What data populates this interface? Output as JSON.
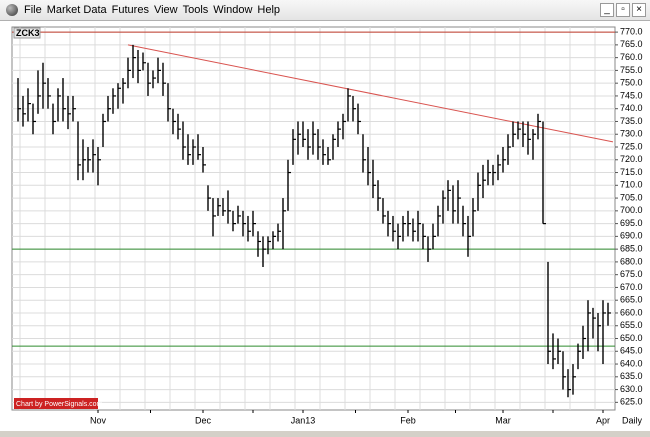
{
  "menu": [
    "File",
    "Market Data",
    "Futures",
    "View",
    "Tools",
    "Window",
    "Help"
  ],
  "chart_data": {
    "type": "ohlc",
    "title": "ZCK3",
    "watermark": "Chart by PowerSignals.com",
    "period": "Daily",
    "color": "#000000",
    "grid": true,
    "categories": [
      null,
      null,
      null,
      null,
      null,
      null,
      null,
      null,
      null,
      null,
      null,
      null,
      null,
      null,
      null,
      null,
      "Nov",
      null,
      null,
      null,
      null,
      null,
      null,
      null,
      null,
      null,
      null,
      null,
      null,
      null,
      null,
      null,
      null,
      null,
      null,
      null,
      null,
      "Dec",
      null,
      null,
      null,
      null,
      null,
      null,
      null,
      null,
      null,
      null,
      null,
      null,
      null,
      null,
      null,
      null,
      null,
      null,
      null,
      "Jan13",
      null,
      null,
      null,
      null,
      null,
      null,
      null,
      null,
      null,
      null,
      null,
      null,
      null,
      null,
      null,
      null,
      null,
      null,
      null,
      null,
      "Feb",
      null,
      null,
      null,
      null,
      null,
      null,
      null,
      null,
      null,
      null,
      null,
      null,
      null,
      null,
      null,
      null,
      null,
      null,
      "Mar",
      null,
      null,
      null,
      null,
      null,
      null,
      null,
      null,
      null,
      null,
      null,
      null,
      null,
      null,
      null,
      null,
      null,
      null,
      null,
      "Apr",
      null
    ],
    "high": [
      752,
      745,
      748,
      742,
      755,
      758,
      752,
      742,
      748,
      752,
      745,
      745,
      735,
      728,
      725,
      728,
      725,
      738,
      745,
      748,
      750,
      752,
      760,
      765,
      763,
      762,
      758,
      755,
      760,
      758,
      750,
      740,
      738,
      735,
      730,
      728,
      730,
      725,
      710,
      705,
      705,
      705,
      708,
      700,
      702,
      700,
      698,
      700,
      692,
      690,
      690,
      692,
      695,
      705,
      720,
      732,
      735,
      735,
      732,
      735,
      732,
      728,
      725,
      730,
      735,
      738,
      748,
      745,
      742,
      730,
      725,
      720,
      712,
      705,
      700,
      698,
      695,
      698,
      700,
      697,
      700,
      695,
      690,
      695,
      702,
      708,
      712,
      710,
      712,
      702,
      698,
      705,
      715,
      718,
      720,
      718,
      722,
      725,
      730,
      735,
      735,
      735,
      735,
      732,
      738,
      735,
      680,
      652,
      650,
      645,
      638,
      640,
      648,
      655,
      665,
      662,
      660,
      665,
      664
    ],
    "low": [
      735,
      733,
      735,
      730,
      738,
      740,
      740,
      730,
      735,
      735,
      732,
      735,
      712,
      712,
      715,
      715,
      710,
      725,
      735,
      738,
      740,
      742,
      748,
      752,
      750,
      755,
      745,
      748,
      750,
      745,
      735,
      730,
      728,
      720,
      718,
      718,
      720,
      715,
      700,
      690,
      698,
      698,
      695,
      692,
      695,
      690,
      688,
      690,
      682,
      678,
      683,
      685,
      688,
      685,
      700,
      718,
      722,
      725,
      720,
      722,
      720,
      718,
      718,
      720,
      725,
      728,
      735,
      735,
      730,
      715,
      710,
      705,
      700,
      695,
      690,
      688,
      685,
      688,
      690,
      688,
      688,
      685,
      680,
      685,
      690,
      695,
      700,
      695,
      695,
      690,
      682,
      690,
      700,
      705,
      710,
      710,
      712,
      715,
      718,
      725,
      728,
      725,
      722,
      720,
      728,
      695,
      640,
      638,
      640,
      630,
      627,
      628,
      638,
      642,
      645,
      650,
      645,
      640,
      655
    ],
    "close": [
      740,
      738,
      742,
      735,
      745,
      750,
      745,
      735,
      745,
      740,
      738,
      740,
      718,
      720,
      720,
      722,
      720,
      735,
      740,
      745,
      748,
      750,
      755,
      760,
      755,
      758,
      750,
      752,
      755,
      750,
      740,
      735,
      732,
      725,
      722,
      725,
      722,
      718,
      705,
      698,
      702,
      700,
      700,
      695,
      698,
      695,
      692,
      695,
      688,
      685,
      688,
      690,
      692,
      700,
      715,
      728,
      730,
      728,
      725,
      730,
      725,
      722,
      720,
      728,
      732,
      735,
      745,
      740,
      735,
      720,
      715,
      710,
      705,
      698,
      695,
      692,
      690,
      695,
      695,
      692,
      695,
      690,
      685,
      690,
      698,
      705,
      708,
      700,
      705,
      695,
      690,
      700,
      710,
      712,
      715,
      715,
      718,
      720,
      725,
      730,
      732,
      730,
      728,
      730,
      735,
      695,
      645,
      642,
      645,
      635,
      630,
      635,
      645,
      650,
      660,
      658,
      655,
      660,
      660
    ],
    "ylim": [
      622,
      772
    ],
    "yticks": [
      {
        "value": 770,
        "label": "770.0"
      },
      {
        "value": 765,
        "label": "765.0"
      },
      {
        "value": 760,
        "label": "760.0"
      },
      {
        "value": 755,
        "label": "755.0"
      },
      {
        "value": 750,
        "label": "750.0"
      },
      {
        "value": 745,
        "label": "745.0"
      },
      {
        "value": 740,
        "label": "740.0"
      },
      {
        "value": 735,
        "label": "735.0"
      },
      {
        "value": 730,
        "label": "730.0"
      },
      {
        "value": 725,
        "label": "725.0"
      },
      {
        "value": 720,
        "label": "720.0"
      },
      {
        "value": 715,
        "label": "715.0"
      },
      {
        "value": 710,
        "label": "710.0"
      },
      {
        "value": 705,
        "label": "705.0"
      },
      {
        "value": 700,
        "label": "700.0"
      },
      {
        "value": 695,
        "label": "695.0"
      },
      {
        "value": 690,
        "label": "690.0"
      },
      {
        "value": 685,
        "label": "685.0"
      },
      {
        "value": 680,
        "label": "680.0"
      },
      {
        "value": 675,
        "label": "675.0"
      },
      {
        "value": 670,
        "label": "670.0"
      },
      {
        "value": 665,
        "label": "665.0"
      },
      {
        "value": 660,
        "label": "660.0"
      },
      {
        "value": 655,
        "label": "655.0"
      },
      {
        "value": 650,
        "label": "650.0"
      },
      {
        "value": 645,
        "label": "645.0"
      },
      {
        "value": 640,
        "label": "640.0"
      },
      {
        "value": 635,
        "label": "635.0"
      },
      {
        "value": 630,
        "label": "630.0"
      },
      {
        "value": 625,
        "label": "625.0"
      }
    ],
    "hlines": [
      {
        "value": 770,
        "color": "#c0392b"
      },
      {
        "value": 685,
        "color": "#2e8b2e"
      },
      {
        "value": 647,
        "color": "#2e8b2e"
      }
    ],
    "trendlines": [
      {
        "x": [
          22,
          119
        ],
        "y": [
          765,
          727
        ],
        "color": "#d9534f"
      }
    ]
  }
}
